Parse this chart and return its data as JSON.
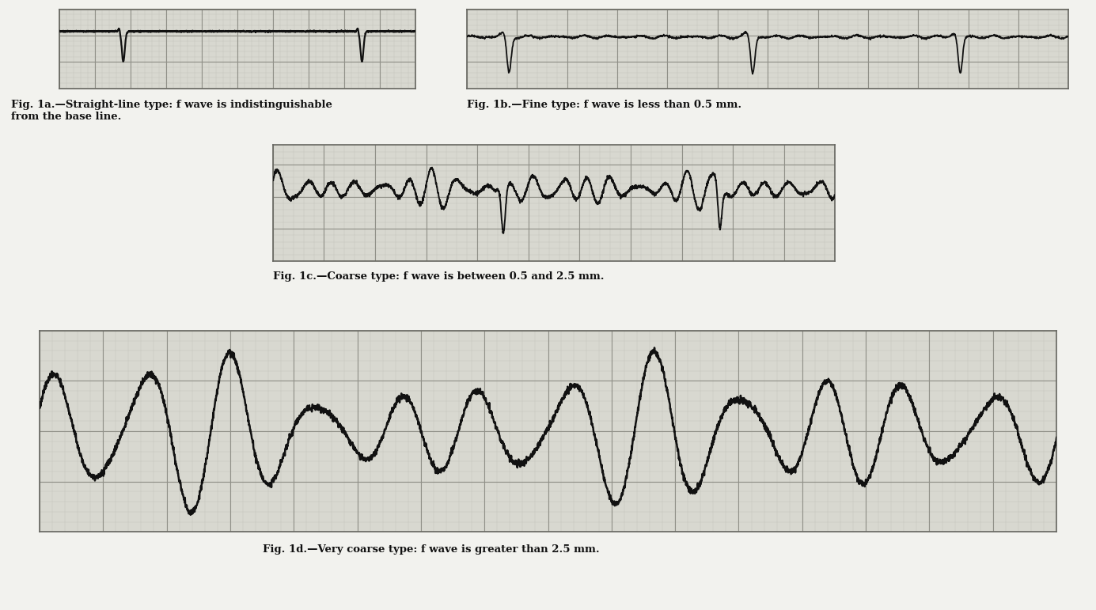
{
  "bg_color": "#d8d8d0",
  "grid_major_color": "#909088",
  "grid_minor_color": "#c0c0b8",
  "trace_color": "#111111",
  "border_color": "#666660",
  "fig_bg": "#f2f2ee",
  "captions": [
    "Fig. 1a.—Straight-line type: f wave is indistinguishable\nfrom the base line.",
    "Fig. 1b.—Fine type: f wave is less than 0.5 mm.",
    "Fig. 1c.—Coarse type: f wave is between 0.5 and 2.5 mm.",
    "Fig. 1d.—Very coarse type: f wave is greater than 2.5 mm."
  ],
  "caption_fontsize": 9.5
}
